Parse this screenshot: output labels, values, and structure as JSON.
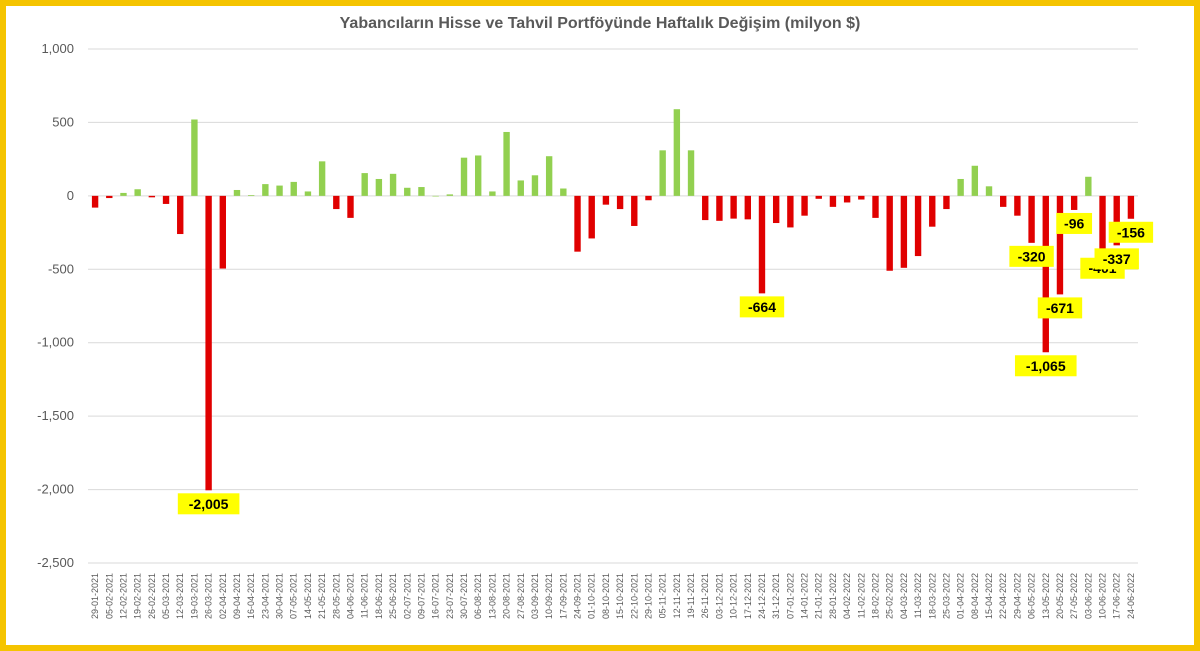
{
  "chart_data": {
    "type": "bar",
    "title": "Yabancıların Hisse ve Tahvil Portföyünde Haftalık Değişim (milyon $)",
    "xlabel": "",
    "ylabel": "",
    "ylim": [
      -2500,
      1000
    ],
    "yticks": [
      1000,
      500,
      0,
      -500,
      -1000,
      -1500,
      -2000,
      -2500
    ],
    "ytick_labels": [
      "1,000",
      "500",
      "0",
      "-500",
      "-1,000",
      "-1,500",
      "-2,000",
      "-2,500"
    ],
    "grid": true,
    "legend": "none",
    "colors": {
      "positive": "#92d050",
      "negative": "#e00000",
      "label_bg": "#ffff00",
      "frame": "#f5c400",
      "grid": "#d9d9d9"
    },
    "x": [
      "29-01-2021",
      "05-02-2021",
      "12-02-2021",
      "19-02-2021",
      "26-02-2021",
      "05-03-2021",
      "12-03-2021",
      "19-03-2021",
      "26-03-2021",
      "02-04-2021",
      "09-04-2021",
      "16-04-2021",
      "23-04-2021",
      "30-04-2021",
      "07-05-2021",
      "14-05-2021",
      "21-05-2021",
      "28-05-2021",
      "04-06-2021",
      "11-06-2021",
      "18-06-2021",
      "25-06-2021",
      "02-07-2021",
      "09-07-2021",
      "16-07-2021",
      "23-07-2021",
      "30-07-2021",
      "06-08-2021",
      "13-08-2021",
      "20-08-2021",
      "27-08-2021",
      "03-09-2021",
      "10-09-2021",
      "17-09-2021",
      "24-09-2021",
      "01-10-2021",
      "08-10-2021",
      "15-10-2021",
      "22-10-2021",
      "29-10-2021",
      "05-11-2021",
      "12-11-2021",
      "19-11-2021",
      "26-11-2021",
      "03-12-2021",
      "10-12-2021",
      "17-12-2021",
      "24-12-2021",
      "31-12-2021",
      "07-01-2022",
      "14-01-2022",
      "21-01-2022",
      "28-01-2022",
      "04-02-2022",
      "11-02-2022",
      "18-02-2022",
      "25-02-2022",
      "04-03-2022",
      "11-03-2022",
      "18-03-2022",
      "25-03-2022",
      "01-04-2022",
      "08-04-2022",
      "15-04-2022",
      "22-04-2022",
      "29-04-2022",
      "06-05-2022",
      "13-05-2022",
      "20-05-2022",
      "27-05-2022",
      "03-06-2022",
      "10-06-2022",
      "17-06-2022",
      "24-06-2022"
    ],
    "x_tick_labels": [
      "29-01-2021",
      "05-02-2021",
      "12-02-2021",
      "19-02-2021",
      "26-02-2021",
      "05-03-2021",
      "12-03-2021",
      "19-03-2021",
      "26-03-2021",
      "02-04-2021",
      "09-04-2021",
      "16-04-2021",
      "23-04-2021",
      "30-04-2021",
      "07-05-2021",
      "14-05-2021",
      "21-05-2021",
      "28-05-2021",
      "04-06-2021",
      "11-06-2021",
      "18-06-2021",
      "25-06-2021",
      "02-07-2021",
      "09-07-2021",
      "16-07-2021",
      "23-07-2021",
      "30-07-2021",
      "06-08-2021",
      "13-08-2021",
      "20-08-2021",
      "27-08-2021",
      "03-09-2021",
      "10-09-2021",
      "17-09-2021",
      "24-09-2021",
      "01-10-2021",
      "08-10-2021",
      "15-10-2021",
      "22-10-2021",
      "29-10-2021",
      "05-11-2021",
      "12-11-2021",
      "19-11-2021",
      "26-11-2021",
      "03-12-2021",
      "10-12-2021",
      "17-12-2021",
      "24-12-2021",
      "31-12-2021",
      "07-01-2022",
      "14-01-2022",
      "21-01-2022",
      "28-01-2022",
      "04-02-2022",
      "11-02-2022",
      "18-02-2022",
      "25-02-2022",
      "04-03-2022",
      "11-03-2022",
      "18-03-2022",
      "25-03-2022",
      "01-04-2022",
      "08-04-2022",
      "15-04-2022",
      "22-04-2022",
      "29-04-2022",
      "06-05-2022",
      "13-05-2022",
      "20-05-2022",
      "27-05-2022",
      "03-06-2022",
      "10-06-2022",
      "17-06-2022",
      "24-06-2022"
    ],
    "values": [
      -80,
      -15,
      20,
      45,
      -10,
      -55,
      -260,
      520,
      -2005,
      -495,
      40,
      5,
      80,
      70,
      95,
      30,
      235,
      -90,
      -150,
      155,
      115,
      150,
      55,
      60,
      0,
      10,
      260,
      275,
      30,
      435,
      105,
      140,
      270,
      50,
      -380,
      -290,
      -60,
      -90,
      -205,
      -30,
      310,
      590,
      310,
      -165,
      -170,
      -155,
      -160,
      -664,
      -185,
      -215,
      -135,
      -20,
      -75,
      -45,
      -25,
      -150,
      -510,
      -490,
      -410,
      -210,
      -90,
      115,
      205,
      65,
      -75,
      -135,
      -320,
      -1065,
      -671,
      -96,
      130,
      -401,
      -337,
      -156
    ],
    "data_labels": [
      {
        "x": "26-03-2021",
        "value": -2005,
        "text": "-2,005"
      },
      {
        "x": "24-12-2021",
        "value": -664,
        "text": "-664"
      },
      {
        "x": "06-05-2022",
        "value": -320,
        "text": "-320"
      },
      {
        "x": "13-05-2022",
        "value": -1065,
        "text": "-1,065"
      },
      {
        "x": "20-05-2022",
        "value": -671,
        "text": "-671"
      },
      {
        "x": "27-05-2022",
        "value": -96,
        "text": "-96"
      },
      {
        "x": "10-06-2022",
        "value": -401,
        "text": "-401"
      },
      {
        "x": "17-06-2022",
        "value": -337,
        "text": "-337"
      },
      {
        "x": "24-06-2022",
        "value": -156,
        "text": "-156"
      }
    ]
  }
}
